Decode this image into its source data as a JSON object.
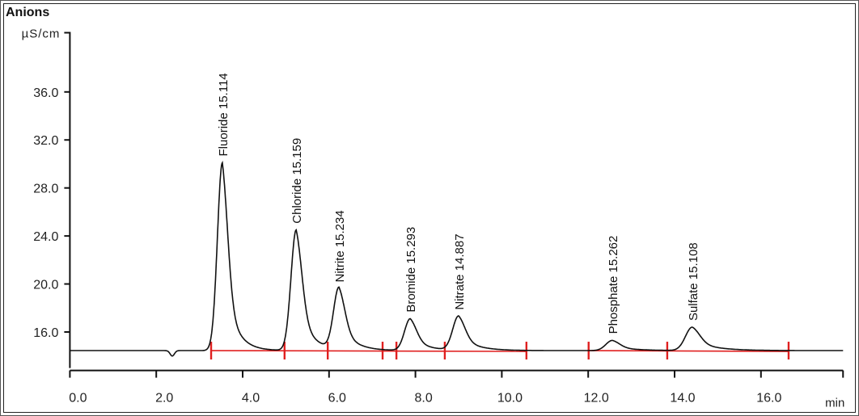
{
  "title": "Anions",
  "chart_data": {
    "type": "line",
    "ylabel": "µS/cm",
    "xlabel": "min",
    "xlim": [
      0,
      17.9
    ],
    "ylim": [
      13.0,
      41.0
    ],
    "xticks": [
      "0.0",
      "2.0",
      "4.0",
      "6.0",
      "8.0",
      "10.0",
      "12.0",
      "14.0",
      "16.0"
    ],
    "yticks": [
      "16.0",
      "20.0",
      "24.0",
      "28.0",
      "32.0",
      "36.0"
    ],
    "grid": false,
    "baseline": 14.45,
    "series_color": "#111111",
    "integration_color": "#e02020",
    "system_dip": {
      "x": 2.37,
      "y": 14.0
    },
    "peaks": [
      {
        "label": "Fluoride 15.114",
        "x": 3.53,
        "y": 30.1
      },
      {
        "label": "Chloride 15.159",
        "x": 5.24,
        "y": 24.5
      },
      {
        "label": "Nitrite 15.234",
        "x": 6.23,
        "y": 19.6
      },
      {
        "label": "Bromide 15.293",
        "x": 7.88,
        "y": 17.1
      },
      {
        "label": "Nitrate 14.887",
        "x": 9.0,
        "y": 17.3
      },
      {
        "label": "Phosphate 15.262",
        "x": 12.56,
        "y": 15.3
      },
      {
        "label": "Sulfate 15.108",
        "x": 14.41,
        "y": 16.4
      }
    ],
    "integration_marks": [
      3.27,
      4.97,
      5.97,
      7.24,
      7.56,
      8.68,
      10.57,
      12.01,
      13.83,
      16.64
    ],
    "integration_segments": [
      [
        3.27,
        10.57
      ],
      [
        12.01,
        16.64
      ]
    ]
  }
}
